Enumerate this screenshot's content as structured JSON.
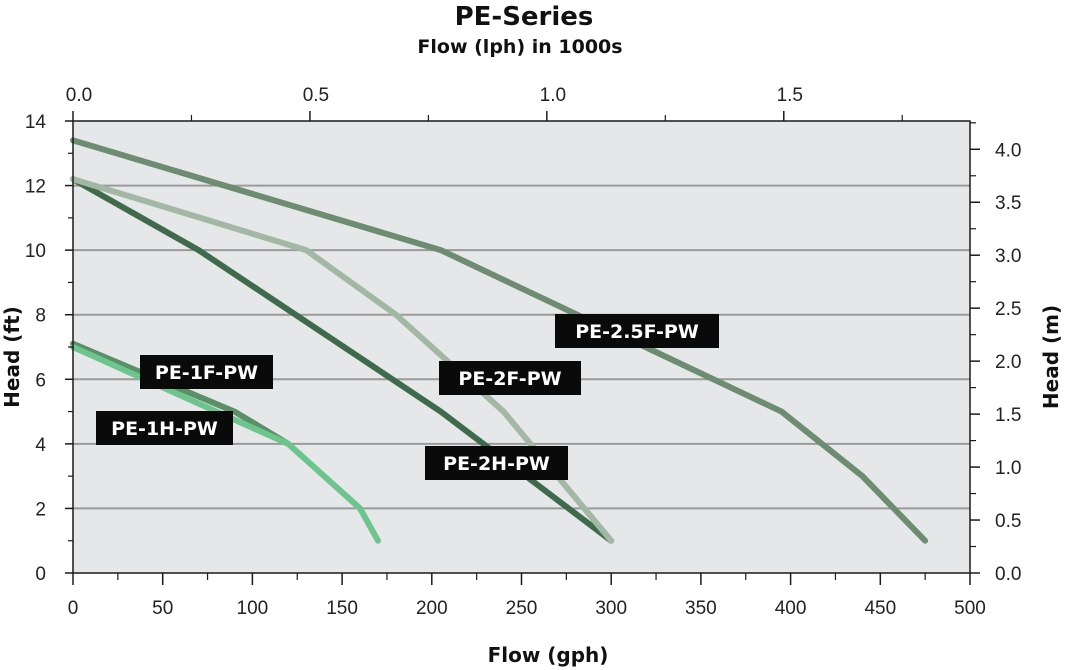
{
  "chart_data": {
    "type": "line",
    "title": "PE-Series",
    "subtitle": "Flow (lph)  in 1000s",
    "xlabel": "Flow (gph)",
    "ylabel": "Head (ft)",
    "y2label": "Head (m)",
    "xlim": [
      0,
      500
    ],
    "ylim": [
      0,
      14
    ],
    "x2lim": [
      0,
      1.893
    ],
    "y2lim": [
      0,
      4.267
    ],
    "grid": true,
    "x_ticks": [
      0,
      50,
      100,
      150,
      200,
      250,
      300,
      350,
      400,
      450,
      500
    ],
    "x_tick_labels": [
      "0",
      "50",
      "100",
      "150",
      "200",
      "250",
      "300",
      "350",
      "400",
      "450",
      "500"
    ],
    "y_ticks": [
      0,
      2,
      4,
      6,
      8,
      10,
      12,
      14
    ],
    "y_tick_labels": [
      "0",
      "2",
      "4",
      "6",
      "8",
      "10",
      "12",
      "14"
    ],
    "x2_ticks": [
      0.0,
      0.5,
      1.0,
      1.5
    ],
    "x2_tick_labels": [
      "0.0",
      "0.5",
      "1.0",
      "1.5"
    ],
    "y2_ticks": [
      0.0,
      0.5,
      1.0,
      1.5,
      2.0,
      2.5,
      3.0,
      3.5,
      4.0
    ],
    "y2_tick_labels": [
      "0.0",
      "0.5",
      "1.0",
      "1.5",
      "2.0",
      "2.5",
      "3.0",
      "3.5",
      "4.0"
    ],
    "series": [
      {
        "name": "PE-1F-PW",
        "color": "#5b8f67",
        "x": [
          0,
          90,
          120
        ],
        "y": [
          7.1,
          5.0,
          4.0
        ]
      },
      {
        "name": "PE-1H-PW",
        "color": "#6dc58e",
        "x": [
          0,
          120,
          160,
          170
        ],
        "y": [
          7.0,
          4.0,
          2.0,
          1.0
        ]
      },
      {
        "name": "PE-2H-PW",
        "color": "#3f6b4c",
        "x": [
          0,
          70,
          205,
          300
        ],
        "y": [
          12.2,
          10.0,
          5.0,
          1.0
        ]
      },
      {
        "name": "PE-2F-PW",
        "color": "#a3b8a4",
        "x": [
          0,
          130,
          180,
          240,
          300
        ],
        "y": [
          12.2,
          10.0,
          8.0,
          5.0,
          1.0
        ]
      },
      {
        "name": "PE-2.5F-PW",
        "color": "#6d8c72",
        "x": [
          0,
          205,
          395,
          440,
          475
        ],
        "y": [
          13.4,
          10.0,
          5.0,
          3.0,
          1.0
        ]
      }
    ],
    "labels": [
      {
        "series": "PE-1F-PW",
        "text": "PE-1F-PW"
      },
      {
        "series": "PE-1H-PW",
        "text": "PE-1H-PW"
      },
      {
        "series": "PE-2H-PW",
        "text": "PE-2H-PW"
      },
      {
        "series": "PE-2F-PW",
        "text": "PE-2F-PW"
      },
      {
        "series": "PE-2.5F-PW",
        "text": "PE-2.5F-PW"
      }
    ]
  }
}
